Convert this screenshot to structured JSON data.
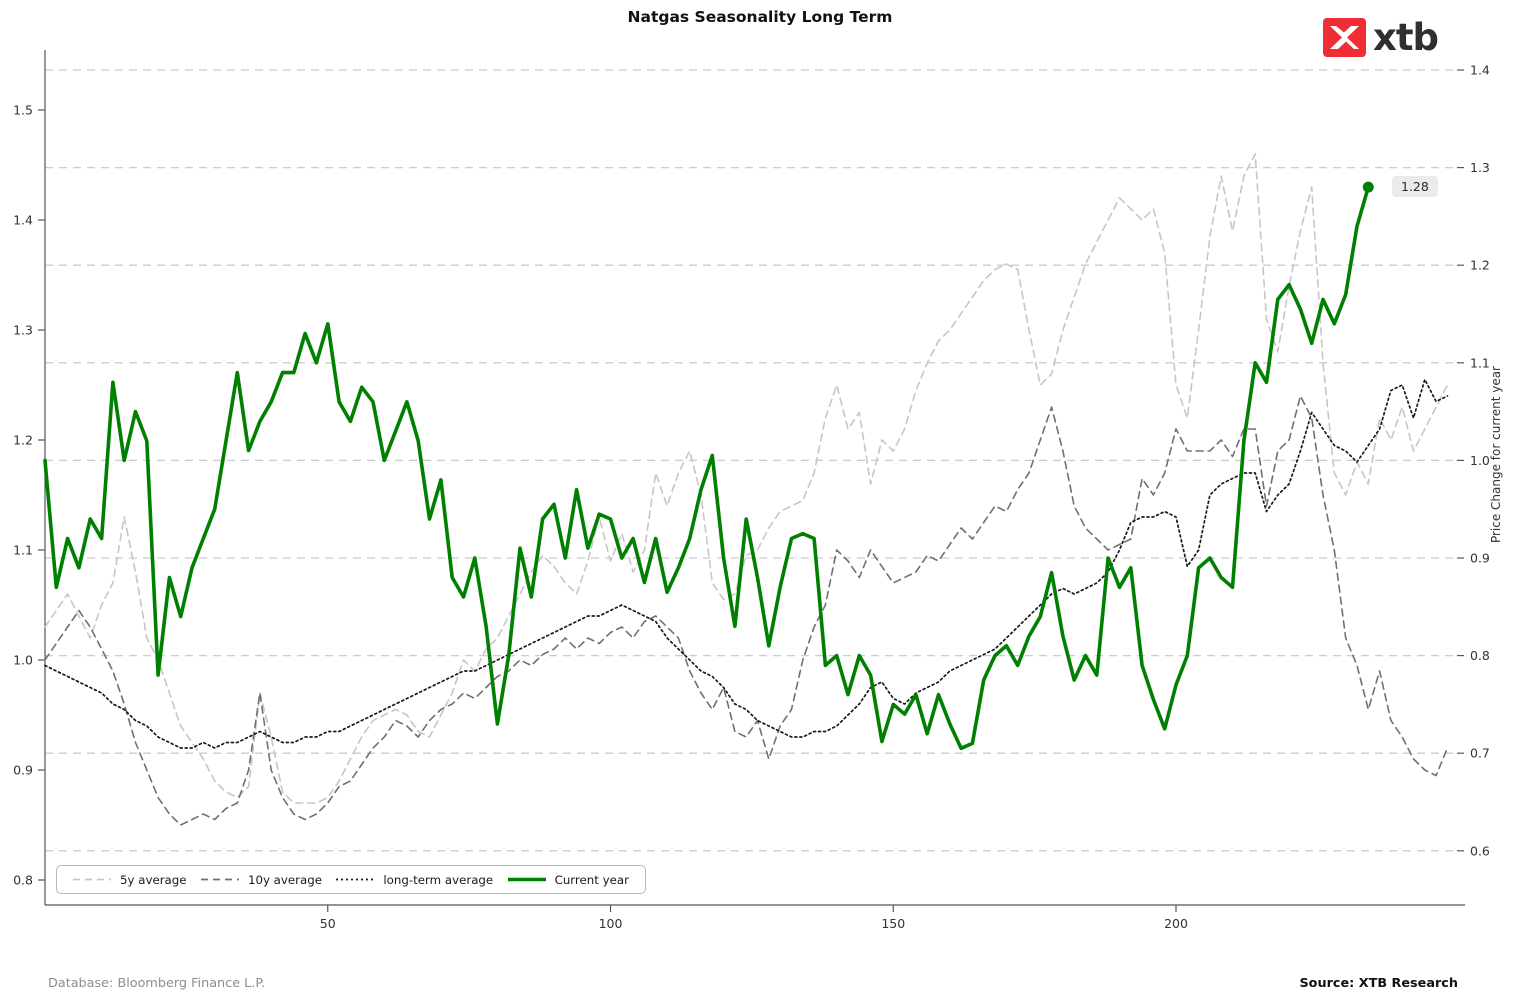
{
  "title": "Natgas Seasonality Long Term",
  "logo": {
    "text": "xtb",
    "mark_color": "#ee2e34",
    "mark_glyph": "x-cross"
  },
  "annotation": {
    "last_value_label": "1.28"
  },
  "right_axis_label": "Price Change for current year",
  "footer": {
    "database": "Database: Bloomberg Finance L.P.",
    "source": "Source: XTB Research"
  },
  "legend": {
    "items": [
      {
        "label": "5y average"
      },
      {
        "label": "10y average"
      },
      {
        "label": "long-term average"
      },
      {
        "label": "Current year"
      }
    ]
  },
  "chart_data": {
    "type": "line",
    "title": "Natgas Seasonality Long Term",
    "xlabel": "",
    "x_unit": "trading day of year",
    "x_ticks": [
      50,
      100,
      150,
      200
    ],
    "x_range": [
      0,
      249
    ],
    "day_step_between_points": 2,
    "grid": "horizontal dashed gridlines aligned to right axis ticks",
    "legend_position": "bottom-left inside plot",
    "left_axis": {
      "ticks": [
        1.5,
        1.4,
        1.3,
        1.2,
        1.1,
        1.0,
        0.9,
        0.8
      ],
      "range": [
        0.78,
        1.55
      ]
    },
    "right_axis": {
      "ticks": [
        1.4,
        1.3,
        1.2,
        1.1,
        1.0,
        0.9,
        0.8,
        0.7,
        0.6
      ],
      "range": [
        0.58,
        1.42
      ],
      "label": "Price Change for current year"
    },
    "series": [
      {
        "name": "5y average",
        "axis": "left",
        "color": "#c6c6c6",
        "dash": "7 5",
        "width": 1.6,
        "values": [
          1.03,
          1.045,
          1.06,
          1.04,
          1.02,
          1.05,
          1.07,
          1.13,
          1.08,
          1.02,
          1.0,
          0.97,
          0.94,
          0.925,
          0.91,
          0.89,
          0.88,
          0.875,
          0.885,
          0.97,
          0.93,
          0.88,
          0.87,
          0.87,
          0.87,
          0.875,
          0.89,
          0.91,
          0.93,
          0.945,
          0.95,
          0.955,
          0.95,
          0.935,
          0.93,
          0.95,
          0.97,
          1.0,
          0.99,
          1.01,
          1.02,
          1.04,
          1.06,
          1.08,
          1.095,
          1.085,
          1.07,
          1.06,
          1.09,
          1.13,
          1.09,
          1.115,
          1.08,
          1.1,
          1.17,
          1.14,
          1.17,
          1.19,
          1.15,
          1.07,
          1.055,
          1.06,
          1.095,
          1.1,
          1.12,
          1.135,
          1.14,
          1.145,
          1.17,
          1.22,
          1.25,
          1.21,
          1.225,
          1.16,
          1.2,
          1.19,
          1.21,
          1.245,
          1.27,
          1.29,
          1.3,
          1.315,
          1.33,
          1.345,
          1.355,
          1.36,
          1.355,
          1.3,
          1.25,
          1.26,
          1.3,
          1.33,
          1.36,
          1.38,
          1.4,
          1.42,
          1.41,
          1.4,
          1.41,
          1.37,
          1.25,
          1.22,
          1.3,
          1.385,
          1.44,
          1.39,
          1.44,
          1.46,
          1.31,
          1.28,
          1.34,
          1.39,
          1.43,
          1.27,
          1.17,
          1.15,
          1.18,
          1.16,
          1.22,
          1.2,
          1.23,
          1.19,
          1.21,
          1.23,
          1.25
        ]
      },
      {
        "name": "10y average",
        "axis": "left",
        "color": "#707070",
        "dash": "7 5",
        "width": 1.6,
        "values": [
          1.0,
          1.015,
          1.03,
          1.045,
          1.03,
          1.01,
          0.99,
          0.96,
          0.925,
          0.9,
          0.875,
          0.86,
          0.85,
          0.855,
          0.86,
          0.855,
          0.865,
          0.87,
          0.9,
          0.97,
          0.9,
          0.875,
          0.86,
          0.855,
          0.86,
          0.87,
          0.885,
          0.89,
          0.905,
          0.92,
          0.93,
          0.945,
          0.94,
          0.93,
          0.945,
          0.955,
          0.96,
          0.97,
          0.965,
          0.975,
          0.985,
          0.99,
          1.0,
          0.995,
          1.005,
          1.01,
          1.02,
          1.01,
          1.02,
          1.015,
          1.025,
          1.03,
          1.02,
          1.035,
          1.04,
          1.03,
          1.02,
          0.99,
          0.97,
          0.955,
          0.975,
          0.935,
          0.93,
          0.945,
          0.91,
          0.94,
          0.955,
          1.0,
          1.03,
          1.05,
          1.1,
          1.09,
          1.075,
          1.1,
          1.085,
          1.07,
          1.075,
          1.08,
          1.095,
          1.09,
          1.105,
          1.12,
          1.11,
          1.125,
          1.14,
          1.135,
          1.155,
          1.17,
          1.2,
          1.23,
          1.19,
          1.14,
          1.12,
          1.11,
          1.1,
          1.105,
          1.11,
          1.165,
          1.15,
          1.17,
          1.21,
          1.19,
          1.19,
          1.19,
          1.2,
          1.185,
          1.21,
          1.21,
          1.14,
          1.19,
          1.2,
          1.24,
          1.22,
          1.15,
          1.1,
          1.02,
          0.995,
          0.955,
          0.99,
          0.945,
          0.93,
          0.91,
          0.9,
          0.895,
          0.92
        ]
      },
      {
        "name": "long-term average",
        "axis": "left",
        "color": "#1a1a1a",
        "dash": "2 3",
        "width": 1.7,
        "values": [
          0.995,
          0.99,
          0.985,
          0.98,
          0.975,
          0.97,
          0.96,
          0.955,
          0.945,
          0.94,
          0.93,
          0.925,
          0.92,
          0.92,
          0.925,
          0.92,
          0.925,
          0.925,
          0.93,
          0.935,
          0.93,
          0.925,
          0.925,
          0.93,
          0.93,
          0.935,
          0.935,
          0.94,
          0.945,
          0.95,
          0.955,
          0.96,
          0.965,
          0.97,
          0.975,
          0.98,
          0.985,
          0.99,
          0.99,
          0.995,
          1.0,
          1.005,
          1.01,
          1.015,
          1.02,
          1.025,
          1.03,
          1.035,
          1.04,
          1.04,
          1.045,
          1.05,
          1.045,
          1.04,
          1.035,
          1.02,
          1.01,
          1.0,
          0.99,
          0.985,
          0.975,
          0.96,
          0.955,
          0.945,
          0.94,
          0.935,
          0.93,
          0.93,
          0.935,
          0.935,
          0.94,
          0.95,
          0.96,
          0.975,
          0.98,
          0.965,
          0.96,
          0.97,
          0.975,
          0.98,
          0.99,
          0.995,
          1.0,
          1.005,
          1.01,
          1.02,
          1.03,
          1.04,
          1.05,
          1.06,
          1.065,
          1.06,
          1.065,
          1.07,
          1.08,
          1.1,
          1.125,
          1.13,
          1.13,
          1.135,
          1.13,
          1.085,
          1.1,
          1.15,
          1.16,
          1.165,
          1.17,
          1.17,
          1.135,
          1.15,
          1.16,
          1.19,
          1.225,
          1.21,
          1.195,
          1.19,
          1.18,
          1.195,
          1.21,
          1.245,
          1.25,
          1.22,
          1.255,
          1.235,
          1.24
        ]
      },
      {
        "name": "Current year",
        "axis": "right",
        "color": "#008000",
        "dash": "",
        "width": 3.6,
        "end_marker": true,
        "end_label": "1.28",
        "values": [
          1.0,
          0.87,
          0.92,
          0.89,
          0.94,
          0.92,
          1.08,
          1.0,
          1.05,
          1.02,
          0.78,
          0.88,
          0.84,
          0.89,
          0.92,
          0.95,
          1.02,
          1.09,
          1.01,
          1.04,
          1.06,
          1.09,
          1.09,
          1.13,
          1.1,
          1.14,
          1.06,
          1.04,
          1.075,
          1.06,
          1.0,
          1.03,
          1.06,
          1.02,
          0.94,
          0.98,
          0.88,
          0.86,
          0.9,
          0.83,
          0.73,
          0.8,
          0.91,
          0.86,
          0.94,
          0.955,
          0.9,
          0.97,
          0.91,
          0.945,
          0.94,
          0.9,
          0.92,
          0.875,
          0.92,
          0.865,
          0.89,
          0.92,
          0.97,
          1.005,
          0.9,
          0.83,
          0.94,
          0.88,
          0.81,
          0.87,
          0.92,
          0.925,
          0.92,
          0.79,
          0.8,
          0.76,
          0.8,
          0.78,
          0.712,
          0.75,
          0.74,
          0.76,
          0.72,
          0.76,
          0.73,
          0.705,
          0.71,
          0.775,
          0.8,
          0.81,
          0.79,
          0.82,
          0.84,
          0.885,
          0.82,
          0.775,
          0.8,
          0.78,
          0.9,
          0.87,
          0.89,
          0.79,
          0.755,
          0.725,
          0.77,
          0.8,
          0.89,
          0.9,
          0.88,
          0.87,
          1.02,
          1.1,
          1.08,
          1.165,
          1.18,
          1.155,
          1.12,
          1.165,
          1.14,
          1.17,
          1.24,
          1.28
        ]
      }
    ]
  }
}
